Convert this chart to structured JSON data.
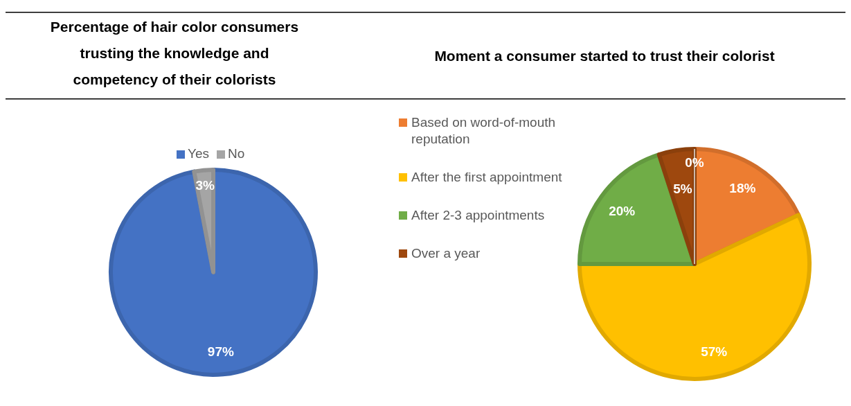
{
  "chart_data": [
    {
      "type": "pie",
      "title": "Percentage of hair color consumers trusting the knowledge and competency of their colorists",
      "categories": [
        "Yes",
        "No"
      ],
      "values": [
        97,
        3
      ],
      "colors": [
        "#4472c4",
        "#a5a5a5"
      ],
      "value_labels": [
        "97%",
        "3%"
      ],
      "legend": "top"
    },
    {
      "type": "pie",
      "title": "Moment a consumer started to trust their colorist",
      "categories": [
        "Based on word-of-mouth reputation",
        "After the first appointment",
        "After 2-3 appointments",
        "Over a year",
        null
      ],
      "values": [
        18,
        57,
        20,
        5,
        0
      ],
      "colors": [
        "#ed7d31",
        "#ffc000",
        "#70ad47",
        "#9e480e",
        "#ffffff"
      ],
      "value_labels": [
        "18%",
        "57%",
        "20%",
        "5%",
        "0%"
      ],
      "legend": "left"
    }
  ]
}
